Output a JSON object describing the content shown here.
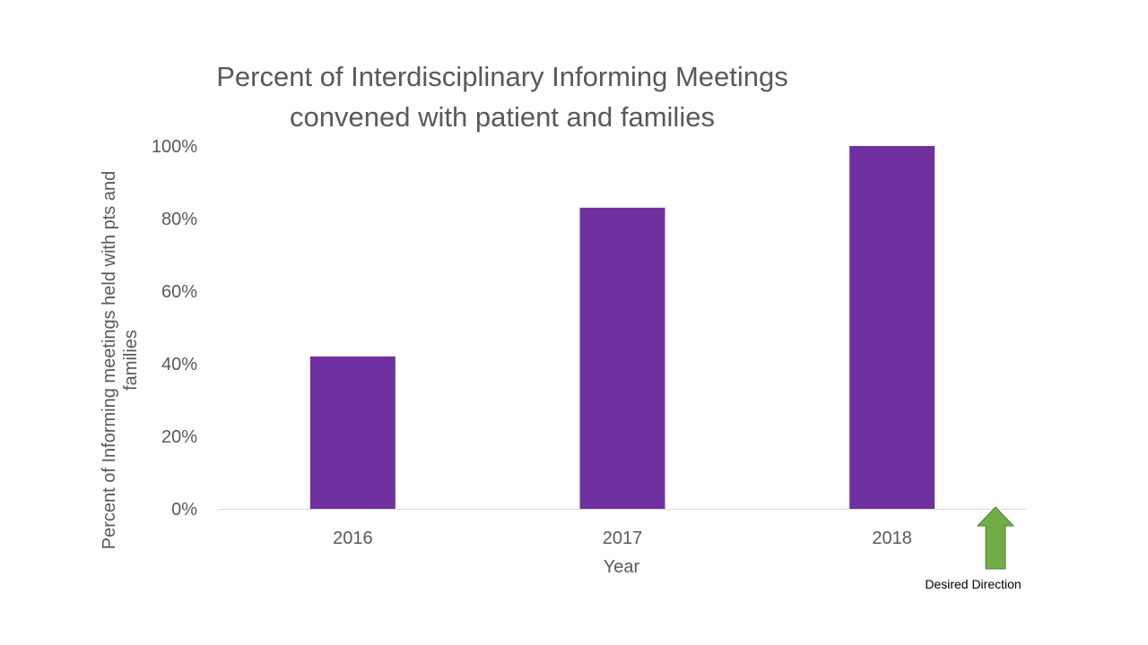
{
  "chart_data": {
    "type": "bar",
    "title_lines": [
      "Percent of Interdisciplinary Informing Meetings",
      "convened with patient and families"
    ],
    "categories": [
      "2016",
      "2017",
      "2018"
    ],
    "values": [
      42,
      83,
      100
    ],
    "value_unit": "%",
    "xlabel": "Year",
    "ylabel_lines": [
      "Percent of Informing meetings held with pts and",
      "families"
    ],
    "ylim": [
      0,
      100
    ],
    "yticks": [
      "0%",
      "20%",
      "40%",
      "60%",
      "80%",
      "100%"
    ],
    "grid": false,
    "legend": "none",
    "bar_color": "#7030A0"
  },
  "annotation": {
    "label": "Desired Direction",
    "arrow": "up-arrow-icon",
    "arrow_color": "#70AD47"
  }
}
